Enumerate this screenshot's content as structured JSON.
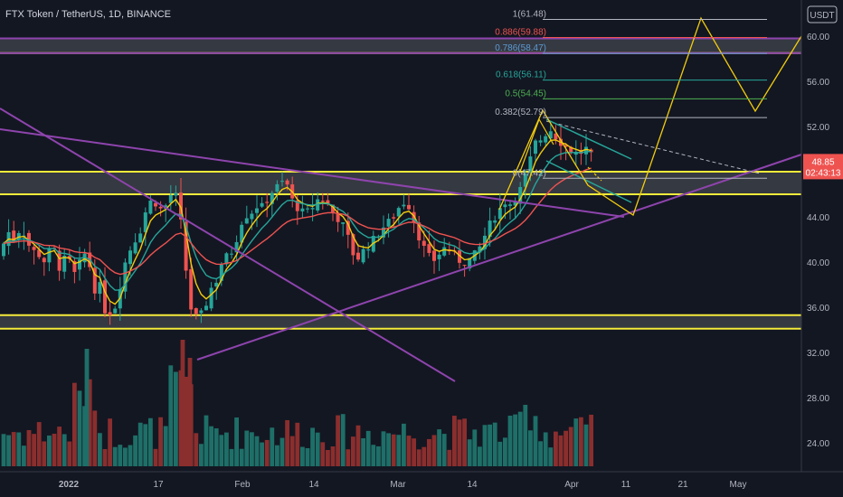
{
  "header": {
    "title": "FTX Token / TetherUS, 1D, BINANCE"
  },
  "currency": "USDT",
  "price_label": {
    "value": "48.85",
    "countdown": "02:43:13",
    "bg": "#ef5350"
  },
  "colors": {
    "up": "#26a69a",
    "down": "#ef5350",
    "volume_up": "#1e6f68",
    "volume_down": "#8b2e2e",
    "ema_fast": "#f2cc0c",
    "ema_mid": "#26a69a",
    "ema_slow": "#ef5350",
    "zone": "#f5eb3b",
    "trend": "#8e44ad",
    "projection": "#f2cc0c",
    "fib_line": "#26a69a"
  },
  "chart_data": {
    "type": "candlestick",
    "y_ticks": [
      "60.00",
      "56.00",
      "52.00",
      "48.00",
      "44.00",
      "40.00",
      "36.00",
      "32.00",
      "28.00",
      "24.00"
    ],
    "ylim": [
      21.6,
      62.4
    ],
    "x_ticks": [
      "2022",
      "17",
      "Feb",
      "14",
      "Mar",
      "14",
      "Apr",
      "11",
      "21",
      "May"
    ],
    "fib_levels": [
      {
        "label": "1(61.48)",
        "price": 61.48,
        "color": "#b2b5be"
      },
      {
        "label": "0.886(59.88)",
        "price": 59.88,
        "color": "#ef5350"
      },
      {
        "label": "0.786(58.47)",
        "price": 58.47,
        "color": "#5b9bd5"
      },
      {
        "label": "0.618(56.11)",
        "price": 56.11,
        "color": "#26a69a"
      },
      {
        "label": "0.5(54.45)",
        "price": 54.45,
        "color": "#4caf50"
      },
      {
        "label": "0.382(52.79)",
        "price": 52.79,
        "color": "#b2b5be"
      },
      {
        "label": "0(47.42)",
        "price": 47.42,
        "color": "#b2b5be"
      }
    ],
    "zones": [
      {
        "from": 58.5,
        "to": 59.8
      },
      {
        "from": 46.0,
        "to": 48.0
      },
      {
        "from": 34.1,
        "to": 35.3
      }
    ]
  }
}
